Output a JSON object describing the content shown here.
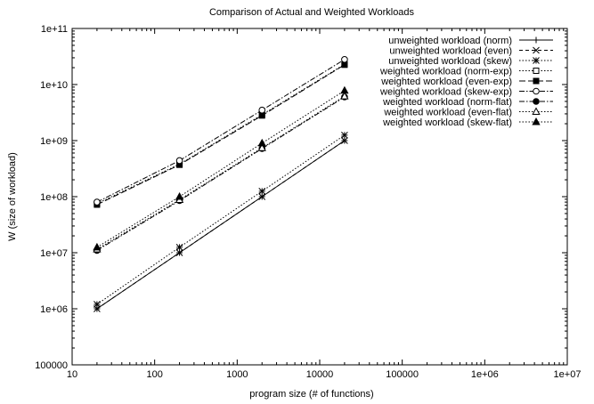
{
  "chart_data": {
    "type": "line",
    "title": "Comparison of Actual and Weighted Workloads",
    "xlabel": "program size (# of functions)",
    "ylabel": "W (size of workload)",
    "x_scale": "log",
    "y_scale": "log",
    "xlim": [
      10,
      10000000
    ],
    "ylim": [
      100000,
      100000000000
    ],
    "x_ticks": [
      10,
      100,
      1000,
      10000,
      100000,
      1000000,
      10000000
    ],
    "x_tick_labels": [
      "10",
      "100",
      "1000",
      "10000",
      "100000",
      "1e+06",
      "1e+07"
    ],
    "y_ticks": [
      100000,
      1000000,
      10000000,
      100000000,
      1000000000,
      10000000000,
      100000000000
    ],
    "y_tick_labels": [
      "100000",
      "1e+06",
      "1e+07",
      "1e+08",
      "1e+09",
      "1e+10",
      "1e+11"
    ],
    "grid": false,
    "legend_position": "top-right",
    "x": [
      20,
      200,
      2000,
      20000
    ],
    "series": [
      {
        "name": "unweighted workload (norm)",
        "values": [
          1000000,
          10000000,
          100000000,
          1000000000
        ],
        "dash": "solid",
        "marker": "plus"
      },
      {
        "name": "unweighted workload (even)",
        "values": [
          1000000,
          10000000,
          100000000,
          1000000000
        ],
        "dash": "dash",
        "marker": "cross"
      },
      {
        "name": "unweighted workload (skew)",
        "values": [
          1200000,
          12500000,
          125000000,
          1250000000
        ],
        "dash": "dot",
        "marker": "star"
      },
      {
        "name": "weighted workload (norm-exp)",
        "values": [
          75000000,
          380000000,
          2900000000,
          23000000000
        ],
        "dash": "dot",
        "marker": "open-square"
      },
      {
        "name": "weighted workload (even-exp)",
        "values": [
          72000000,
          370000000,
          2800000000,
          22500000000
        ],
        "dash": "longdash",
        "marker": "filled-square"
      },
      {
        "name": "weighted workload (skew-exp)",
        "values": [
          80000000,
          440000000,
          3500000000,
          28000000000
        ],
        "dash": "dashdot",
        "marker": "open-circle"
      },
      {
        "name": "weighted workload (norm-flat)",
        "values": [
          11000000,
          85000000,
          720000000,
          6000000000
        ],
        "dash": "dashdot",
        "marker": "filled-circle"
      },
      {
        "name": "weighted workload (even-flat)",
        "values": [
          11500000,
          88000000,
          740000000,
          6200000000
        ],
        "dash": "dot",
        "marker": "open-triangle"
      },
      {
        "name": "weighted workload (skew-flat)",
        "values": [
          12500000,
          100000000,
          900000000,
          7800000000
        ],
        "dash": "dot",
        "marker": "filled-triangle"
      }
    ]
  }
}
